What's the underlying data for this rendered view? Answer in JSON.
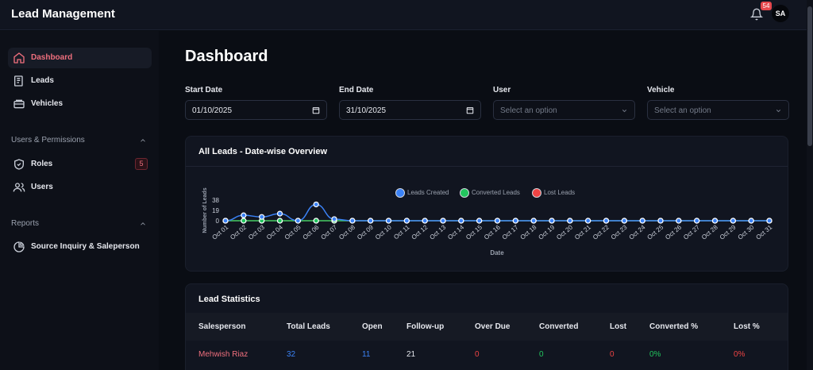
{
  "header": {
    "title": "Lead Management",
    "notifications_count": "54",
    "avatar_initials": "SA"
  },
  "sidebar": {
    "items": [
      {
        "label": "Dashboard",
        "icon": "home-icon",
        "active": true
      },
      {
        "label": "Leads",
        "icon": "leads-icon"
      },
      {
        "label": "Vehicles",
        "icon": "vehicle-icon"
      }
    ],
    "sections": [
      {
        "title": "Users & Permissions",
        "items": [
          {
            "label": "Roles",
            "icon": "shield-icon",
            "badge": "5"
          },
          {
            "label": "Users",
            "icon": "users-icon"
          }
        ]
      },
      {
        "title": "Reports",
        "items": [
          {
            "label": "Source Inquiry & Saleperson",
            "icon": "pie-chart-icon"
          }
        ]
      }
    ]
  },
  "main": {
    "title": "Dashboard",
    "filters": {
      "start_date": {
        "label": "Start Date",
        "value": "01/10/2025"
      },
      "end_date": {
        "label": "End Date",
        "value": "31/10/2025"
      },
      "user": {
        "label": "User",
        "placeholder": "Select an option"
      },
      "vehicle": {
        "label": "Vehicle",
        "placeholder": "Select an option"
      }
    }
  },
  "chart_card": {
    "title": "All Leads - Date-wise Overview"
  },
  "chart_data": {
    "type": "line",
    "title": "",
    "xlabel": "Date",
    "ylabel": "Number of Leads",
    "ylim": [
      0,
      38
    ],
    "yticks": [
      "0",
      "19",
      "38"
    ],
    "categories": [
      "Oct 01",
      "Oct 02",
      "Oct 03",
      "Oct 04",
      "Oct 05",
      "Oct 06",
      "Oct 07",
      "Oct 08",
      "Oct 09",
      "Oct 10",
      "Oct 11",
      "Oct 12",
      "Oct 13",
      "Oct 14",
      "Oct 15",
      "Oct 16",
      "Oct 17",
      "Oct 18",
      "Oct 19",
      "Oct 20",
      "Oct 21",
      "Oct 22",
      "Oct 23",
      "Oct 24",
      "Oct 25",
      "Oct 26",
      "Oct 27",
      "Oct 28",
      "Oct 29",
      "Oct 30",
      "Oct 31"
    ],
    "series": [
      {
        "name": "Leads Created",
        "color": "#3b82f6",
        "values": [
          0,
          10,
          7,
          13,
          0,
          30,
          3,
          0,
          0,
          0,
          0,
          0,
          0,
          0,
          0,
          0,
          0,
          0,
          0,
          0,
          0,
          0,
          0,
          0,
          0,
          0,
          0,
          0,
          0,
          0,
          0
        ]
      },
      {
        "name": "Converted Leads",
        "color": "#22c55e",
        "values": [
          0,
          0,
          0,
          0,
          0,
          0,
          0,
          0,
          0,
          0,
          0,
          0,
          0,
          0,
          0,
          0,
          0,
          0,
          0,
          0,
          0,
          0,
          0,
          0,
          0,
          0,
          0,
          0,
          0,
          0,
          0
        ]
      },
      {
        "name": "Lost Leads",
        "color": "#ef4444",
        "values": [
          0,
          0,
          0,
          0,
          0,
          0,
          0,
          0,
          0,
          0,
          0,
          0,
          0,
          0,
          0,
          0,
          0,
          0,
          0,
          0,
          0,
          0,
          0,
          0,
          0,
          0,
          0,
          0,
          0,
          0,
          0
        ]
      }
    ],
    "legend_position": "top-center"
  },
  "stats": {
    "title": "Lead Statistics",
    "columns": [
      "Salesperson",
      "Total Leads",
      "Open",
      "Follow-up",
      "Over Due",
      "Converted",
      "Lost",
      "Converted %",
      "Lost %"
    ],
    "rows": [
      {
        "salesperson": "Mehwish Riaz",
        "total": "32",
        "open": "11",
        "followup": "21",
        "overdue": "0",
        "converted": "0",
        "lost": "0",
        "converted_pct": "0%",
        "lost_pct": "0%"
      }
    ],
    "colors": {
      "name": "#ef6f7d",
      "blue": "#3b82f6",
      "red": "#ef4444",
      "green": "#22c55e",
      "white": "#e6e8ee"
    }
  }
}
